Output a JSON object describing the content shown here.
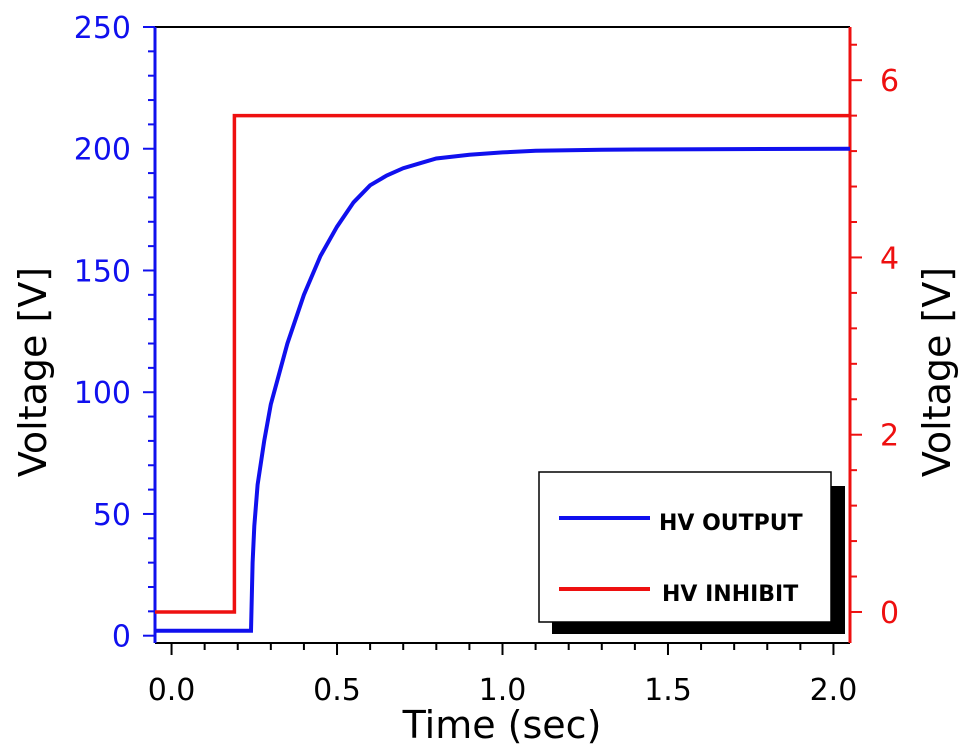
{
  "chart_data": {
    "type": "line",
    "xlabel": "Time (sec)",
    "ylabel_left": "Voltage [V]",
    "ylabel_right": "Voltage [V]",
    "xlim": [
      -0.05,
      2.05
    ],
    "ylim_left": [
      -3,
      250
    ],
    "ylim_right": [
      -0.35,
      6.6
    ],
    "x_ticks": [
      {
        "value": 0.0,
        "label": "0.0"
      },
      {
        "value": 0.5,
        "label": "0.5"
      },
      {
        "value": 1.0,
        "label": "1.0"
      },
      {
        "value": 1.5,
        "label": "1.5"
      },
      {
        "value": 2.0,
        "label": "2.0"
      }
    ],
    "y_ticks_left": [
      {
        "value": 0,
        "label": "0"
      },
      {
        "value": 50,
        "label": "50"
      },
      {
        "value": 100,
        "label": "100"
      },
      {
        "value": 150,
        "label": "150"
      },
      {
        "value": 200,
        "label": "200"
      },
      {
        "value": 250,
        "label": "250"
      }
    ],
    "y_ticks_right": [
      {
        "value": 0,
        "label": "0"
      },
      {
        "value": 2,
        "label": "2"
      },
      {
        "value": 4,
        "label": "4"
      },
      {
        "value": 6,
        "label": "6"
      }
    ],
    "series": [
      {
        "name": "HV OUTPUT",
        "axis": "left",
        "color": "#1010ee",
        "x": [
          -0.05,
          0.24,
          0.245,
          0.25,
          0.26,
          0.28,
          0.3,
          0.35,
          0.4,
          0.45,
          0.5,
          0.55,
          0.6,
          0.65,
          0.7,
          0.75,
          0.8,
          0.9,
          1.0,
          1.1,
          1.3,
          1.6,
          2.05
        ],
        "values": [
          2,
          2,
          30,
          45,
          62,
          80,
          95,
          120,
          140,
          156,
          168,
          178,
          185,
          189,
          192,
          194,
          196,
          197.5,
          198.5,
          199.2,
          199.6,
          199.8,
          200
        ]
      },
      {
        "name": "HV INHIBIT",
        "axis": "right",
        "color": "#ee1010",
        "x": [
          -0.05,
          0.19,
          0.19,
          2.05
        ],
        "values": [
          0,
          0,
          5.6,
          5.6
        ]
      }
    ],
    "legend": {
      "placement": "bottom-right",
      "entries": [
        "HV OUTPUT",
        "HV INHIBIT"
      ]
    },
    "grid": false
  }
}
